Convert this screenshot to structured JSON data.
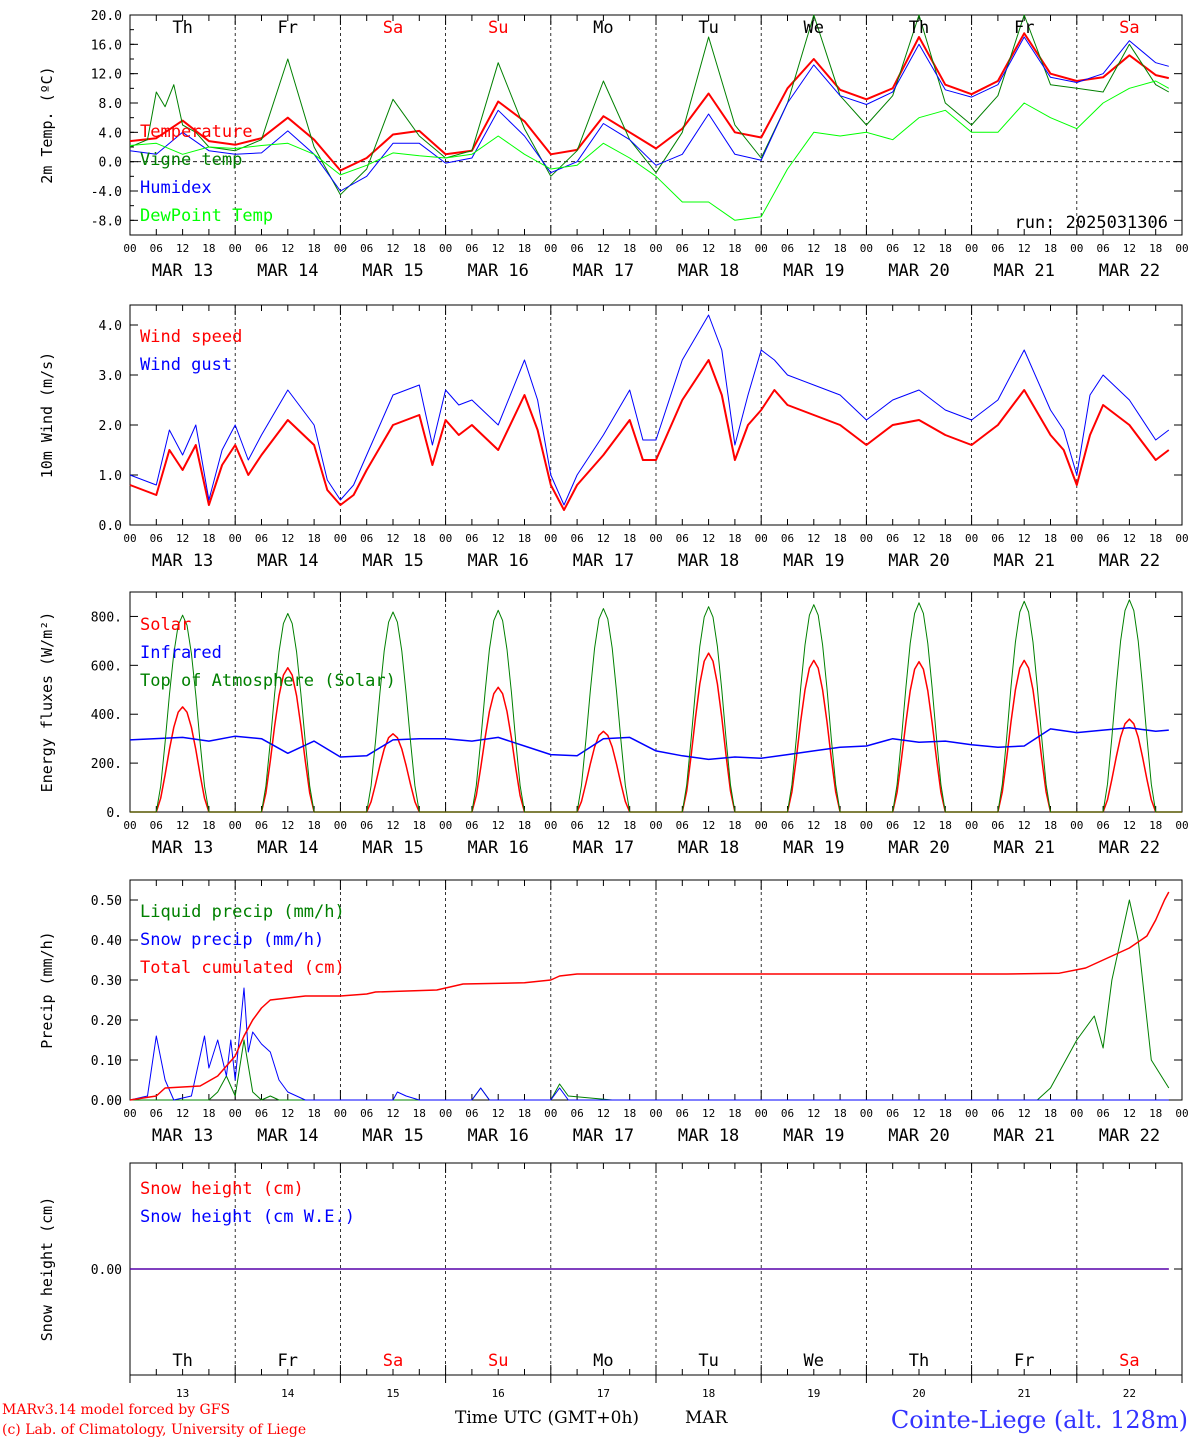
{
  "chart_data": [
    {
      "type": "line",
      "ylabel": "2m Temp. (ºC)",
      "ylim": [
        -10,
        20
      ],
      "yticks": [
        "20.0",
        "16.0",
        "12.0",
        "8.0",
        "4.0",
        "0.0",
        "-4.0",
        "-8.0"
      ],
      "ytick_values": [
        20,
        16,
        12,
        8,
        4,
        0,
        -4,
        -8
      ],
      "zero_line": true,
      "days": [
        "Th",
        "Fr",
        "Sa",
        "Su",
        "Mo",
        "Tu",
        "We",
        "Th",
        "Fr",
        "Sa"
      ],
      "weekend_color": "#ff0000",
      "run": "run: 2025031306",
      "series": [
        {
          "name": "Temperature",
          "color": "#ff0000",
          "width": 2,
          "x": [
            0,
            6,
            12,
            18,
            24,
            30,
            36,
            42,
            48,
            54,
            60,
            66,
            72,
            78,
            84,
            90,
            96,
            102,
            108,
            114,
            120,
            126,
            132,
            138,
            144,
            150,
            156,
            162,
            168,
            174,
            180,
            186,
            192,
            198,
            204,
            210,
            216,
            222,
            228,
            234,
            237
          ],
          "values": [
            2.8,
            3.2,
            5.6,
            2.8,
            2.3,
            3.2,
            6.0,
            3.0,
            -1.2,
            0.5,
            3.7,
            4.2,
            1.0,
            1.5,
            8.2,
            5.5,
            1.0,
            1.6,
            6.2,
            4.0,
            1.8,
            4.5,
            9.3,
            4.0,
            3.3,
            10.0,
            14.0,
            9.8,
            8.5,
            10.0,
            17.0,
            10.5,
            9.2,
            11.0,
            17.5,
            12.0,
            11.0,
            11.5,
            14.5,
            11.8,
            11.4
          ]
        },
        {
          "name": "Vigne temp",
          "color": "#008000",
          "width": 1,
          "x": [
            0,
            4,
            6,
            8,
            10,
            12,
            15,
            18,
            24,
            30,
            36,
            42,
            48,
            54,
            60,
            66,
            72,
            78,
            84,
            90,
            96,
            102,
            108,
            114,
            120,
            126,
            132,
            138,
            144,
            150,
            156,
            162,
            168,
            174,
            180,
            186,
            192,
            198,
            204,
            210,
            216,
            222,
            228,
            234,
            237
          ],
          "values": [
            2.0,
            3.0,
            9.5,
            7.5,
            10.5,
            5.0,
            4.0,
            2.0,
            1.5,
            3.0,
            14.0,
            2.0,
            -4.5,
            -1.0,
            8.5,
            3.5,
            0.5,
            1.5,
            13.5,
            4.5,
            -2.0,
            1.5,
            11.0,
            3.0,
            -1.5,
            4.0,
            17.0,
            5.0,
            0.5,
            8.0,
            20.0,
            9.0,
            5.0,
            9.0,
            20.0,
            8.0,
            5.0,
            9.0,
            20.0,
            10.5,
            10.0,
            9.5,
            16.0,
            10.5,
            9.5
          ]
        },
        {
          "name": "Humidex",
          "color": "#0000ff",
          "width": 1,
          "x": [
            0,
            6,
            12,
            18,
            24,
            30,
            36,
            42,
            48,
            54,
            60,
            66,
            72,
            78,
            84,
            90,
            96,
            102,
            108,
            114,
            120,
            126,
            132,
            138,
            144,
            150,
            156,
            162,
            168,
            174,
            180,
            186,
            192,
            198,
            204,
            210,
            216,
            222,
            228,
            234,
            237
          ],
          "values": [
            1.5,
            1.0,
            4.0,
            1.5,
            1.0,
            1.2,
            4.2,
            1.0,
            -4.0,
            -2.0,
            2.5,
            2.5,
            -0.2,
            0.5,
            7.0,
            3.5,
            -1.5,
            0.0,
            5.2,
            3.0,
            -0.5,
            1.0,
            6.5,
            1.0,
            0.2,
            8.0,
            13.2,
            9.0,
            7.8,
            9.5,
            16.0,
            9.8,
            8.8,
            10.5,
            17.0,
            11.5,
            10.8,
            12.0,
            16.5,
            13.5,
            13.0
          ]
        },
        {
          "name": "DewPoint Temp",
          "color": "#00ff00",
          "width": 1,
          "x": [
            0,
            6,
            12,
            18,
            24,
            30,
            36,
            42,
            48,
            54,
            60,
            66,
            72,
            78,
            84,
            90,
            96,
            102,
            108,
            114,
            120,
            126,
            132,
            138,
            144,
            150,
            156,
            162,
            168,
            174,
            180,
            186,
            192,
            198,
            204,
            210,
            216,
            222,
            228,
            234,
            237
          ],
          "values": [
            2.2,
            2.5,
            1.0,
            2.0,
            1.8,
            2.2,
            2.5,
            1.0,
            -1.8,
            -0.5,
            1.2,
            0.8,
            0.5,
            1.0,
            3.5,
            1.0,
            -1.0,
            -0.5,
            2.5,
            0.5,
            -2.0,
            -5.5,
            -5.5,
            -8.0,
            -7.5,
            -1.0,
            4.0,
            3.5,
            4.0,
            3.0,
            6.0,
            7.0,
            4.0,
            4.0,
            8.0,
            6.0,
            4.5,
            8.0,
            10.0,
            11.0,
            10.0
          ]
        }
      ]
    },
    {
      "type": "line",
      "ylabel": "10m Wind (m/s)",
      "ylim": [
        0,
        4.4
      ],
      "yticks": [
        "4.0",
        "3.0",
        "2.0",
        "1.0",
        "0.0"
      ],
      "ytick_values": [
        4,
        3,
        2,
        1,
        0
      ],
      "series": [
        {
          "name": "Wind speed",
          "color": "#ff0000",
          "width": 2,
          "x": [
            0,
            6,
            9,
            12,
            15,
            18,
            21,
            24,
            27,
            30,
            36,
            42,
            45,
            48,
            51,
            54,
            60,
            66,
            69,
            72,
            75,
            78,
            84,
            90,
            93,
            96,
            99,
            102,
            108,
            114,
            117,
            120,
            126,
            132,
            135,
            138,
            141,
            144,
            147,
            150,
            156,
            162,
            168,
            174,
            180,
            186,
            192,
            198,
            204,
            210,
            213,
            216,
            219,
            222,
            228,
            234,
            237
          ],
          "values": [
            0.8,
            0.6,
            1.5,
            1.1,
            1.6,
            0.4,
            1.2,
            1.6,
            1.0,
            1.4,
            2.1,
            1.6,
            0.7,
            0.4,
            0.6,
            1.1,
            2.0,
            2.2,
            1.2,
            2.1,
            1.8,
            2.0,
            1.5,
            2.6,
            1.9,
            0.8,
            0.3,
            0.8,
            1.4,
            2.1,
            1.3,
            1.3,
            2.5,
            3.3,
            2.6,
            1.3,
            2.0,
            2.3,
            2.7,
            2.4,
            2.2,
            2.0,
            1.6,
            2.0,
            2.1,
            1.8,
            1.6,
            2.0,
            2.7,
            1.8,
            1.5,
            0.8,
            1.8,
            2.4,
            2.0,
            1.3,
            1.5
          ]
        },
        {
          "name": "Wind gust",
          "color": "#0000ff",
          "width": 1,
          "x": [
            0,
            6,
            9,
            12,
            15,
            18,
            21,
            24,
            27,
            30,
            36,
            42,
            45,
            48,
            51,
            54,
            60,
            66,
            69,
            72,
            75,
            78,
            84,
            90,
            93,
            96,
            99,
            102,
            108,
            114,
            117,
            120,
            126,
            132,
            135,
            138,
            141,
            144,
            147,
            150,
            156,
            162,
            168,
            174,
            180,
            186,
            192,
            198,
            204,
            210,
            213,
            216,
            219,
            222,
            228,
            234,
            237
          ],
          "values": [
            1.0,
            0.8,
            1.9,
            1.4,
            2.0,
            0.5,
            1.5,
            2.0,
            1.3,
            1.8,
            2.7,
            2.0,
            0.9,
            0.5,
            0.8,
            1.4,
            2.6,
            2.8,
            1.6,
            2.7,
            2.4,
            2.5,
            2.0,
            3.3,
            2.5,
            1.0,
            0.4,
            1.0,
            1.8,
            2.7,
            1.7,
            1.7,
            3.3,
            4.2,
            3.5,
            1.6,
            2.6,
            3.5,
            3.3,
            3.0,
            2.8,
            2.6,
            2.1,
            2.5,
            2.7,
            2.3,
            2.1,
            2.5,
            3.5,
            2.3,
            1.9,
            1.0,
            2.6,
            3.0,
            2.5,
            1.7,
            1.9
          ]
        }
      ]
    },
    {
      "type": "line",
      "ylabel": "Energy fluxes (W/m²)",
      "ylim": [
        0,
        900
      ],
      "yticks": [
        "800.",
        "600.",
        "400.",
        "200.",
        "0."
      ],
      "ytick_values": [
        800,
        600,
        400,
        200,
        0
      ],
      "series": [
        {
          "name": "Solar",
          "color": "#ff0000",
          "width": 1.5,
          "daily": true,
          "peaks": [
            430,
            590,
            320,
            510,
            330,
            650,
            620,
            615,
            620,
            380
          ]
        },
        {
          "name": "Infrared",
          "color": "#0000ff",
          "width": 1.5,
          "x": [
            0,
            12,
            18,
            24,
            30,
            36,
            42,
            48,
            54,
            60,
            66,
            72,
            78,
            84,
            90,
            96,
            102,
            108,
            114,
            120,
            126,
            132,
            138,
            144,
            150,
            156,
            162,
            168,
            174,
            180,
            186,
            192,
            198,
            204,
            210,
            216,
            222,
            228,
            234,
            237
          ],
          "values": [
            295,
            305,
            290,
            310,
            300,
            240,
            290,
            225,
            230,
            295,
            300,
            300,
            290,
            305,
            270,
            235,
            230,
            300,
            305,
            250,
            230,
            215,
            225,
            220,
            235,
            250,
            265,
            270,
            300,
            285,
            290,
            275,
            265,
            270,
            340,
            325,
            335,
            345,
            330,
            335
          ]
        },
        {
          "name": "Top of Atmosphere (Solar)",
          "color": "#008000",
          "width": 1,
          "daily": true,
          "peaks": [
            805,
            812,
            818,
            825,
            832,
            840,
            848,
            856,
            862,
            868
          ]
        }
      ]
    },
    {
      "type": "line",
      "ylabel": "Precip (mm/h)",
      "ylim": [
        0,
        0.55
      ],
      "yticks": [
        "0.50",
        "0.40",
        "0.30",
        "0.20",
        "0.10",
        "0.00"
      ],
      "ytick_values": [
        0.5,
        0.4,
        0.3,
        0.2,
        0.1,
        0
      ],
      "series": [
        {
          "name": "Liquid precip (mm/h)",
          "color": "#008000",
          "width": 1,
          "x": [
            0,
            10,
            14,
            18,
            20,
            22,
            24,
            26,
            28,
            30,
            32,
            34,
            60,
            66,
            78,
            80,
            82,
            88,
            90,
            96,
            98,
            100,
            110,
            207,
            210,
            216,
            220,
            222,
            224,
            228,
            230,
            233,
            237
          ],
          "values": [
            0,
            0,
            0,
            0,
            0.02,
            0.06,
            0.01,
            0.15,
            0.02,
            0,
            0.01,
            0,
            0,
            0,
            0,
            0.03,
            0,
            0,
            0,
            0,
            0.04,
            0.01,
            0,
            0,
            0.03,
            0.15,
            0.21,
            0.13,
            0.3,
            0.5,
            0.4,
            0.1,
            0.03
          ]
        },
        {
          "name": "Snow precip (mm/h)",
          "color": "#0000ff",
          "width": 1,
          "x": [
            0,
            4,
            6,
            8,
            10,
            14,
            17,
            18,
            20,
            22,
            23,
            24,
            26,
            27,
            28,
            30,
            32,
            34,
            36,
            40,
            60,
            61,
            63,
            66,
            78,
            80,
            82,
            88,
            96,
            98,
            100,
            110,
            237
          ],
          "values": [
            0,
            0.01,
            0.16,
            0.05,
            0,
            0.01,
            0.16,
            0.08,
            0.15,
            0.06,
            0.15,
            0.05,
            0.28,
            0.12,
            0.17,
            0.14,
            0.12,
            0.05,
            0.02,
            0,
            0,
            0.02,
            0.01,
            0,
            0,
            0.03,
            0,
            0,
            0,
            0.03,
            0,
            0,
            0
          ]
        },
        {
          "name": "Total cumulated (cm)",
          "color": "#ff0000",
          "width": 1.5,
          "x": [
            0,
            6,
            8,
            16,
            20,
            24,
            26,
            28,
            30,
            32,
            40,
            48,
            54,
            56,
            70,
            72,
            76,
            90,
            96,
            98,
            102,
            140,
            180,
            200,
            212,
            218,
            224,
            228,
            232,
            234,
            236,
            237
          ],
          "values": [
            0,
            0.01,
            0.03,
            0.035,
            0.06,
            0.11,
            0.16,
            0.2,
            0.23,
            0.25,
            0.26,
            0.26,
            0.265,
            0.27,
            0.275,
            0.28,
            0.29,
            0.293,
            0.3,
            0.31,
            0.315,
            0.315,
            0.315,
            0.315,
            0.317,
            0.33,
            0.36,
            0.38,
            0.41,
            0.45,
            0.5,
            0.52
          ]
        }
      ]
    },
    {
      "type": "line",
      "ylabel": "Snow height (cm)",
      "ylim": [
        -1,
        1
      ],
      "yticks": [
        "0.00"
      ],
      "ytick_values": [
        0
      ],
      "series": [
        {
          "name": "Snow height (cm)",
          "color": "#ff0000",
          "width": 1.5,
          "x": [
            0,
            237
          ],
          "values": [
            0,
            0
          ]
        },
        {
          "name": "Snow height (cm W.E.)",
          "color": "#0000ff",
          "width": 1,
          "x": [
            0,
            237
          ],
          "values": [
            0,
            0
          ]
        }
      ]
    }
  ],
  "axis": {
    "hour_labels": [
      "00",
      "06",
      "12",
      "18"
    ],
    "final_hour": "00",
    "date_labels": [
      "MAR 13",
      "MAR 14",
      "MAR 15",
      "MAR 16",
      "MAR 17",
      "MAR 18",
      "MAR 19",
      "MAR 20",
      "MAR 21",
      "MAR 22"
    ],
    "day_numbers": [
      "13",
      "14",
      "15",
      "16",
      "17",
      "18",
      "19",
      "20",
      "21",
      "22"
    ],
    "time_label": "Time UTC (GMT+0h)",
    "month": "MAR"
  },
  "footer": {
    "model": "MARv3.14 model forced by GFS",
    "credit": "(c) Lab. of Climatology, University of Liege",
    "location": "Cointe-Liege (alt. 128m)"
  }
}
